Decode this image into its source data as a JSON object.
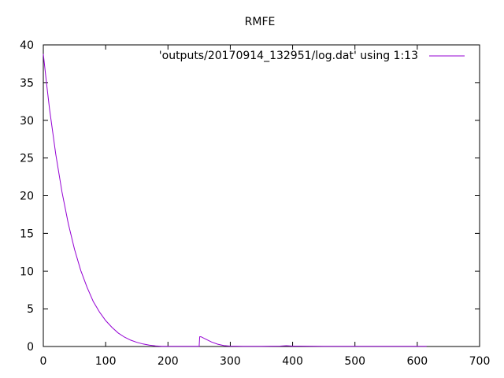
{
  "chart_data": {
    "type": "line",
    "title": "RMFE",
    "xlabel": "",
    "ylabel": "",
    "xlim": [
      0,
      700
    ],
    "ylim": [
      0,
      40
    ],
    "xticks": [
      0,
      100,
      200,
      300,
      400,
      500,
      600,
      700
    ],
    "yticks": [
      0,
      5,
      10,
      15,
      20,
      25,
      30,
      35,
      40
    ],
    "grid": false,
    "legend_position": "top-right",
    "series": [
      {
        "name": "'outputs/20170914_132951/log.dat' using 1:13",
        "color": "#9400d3",
        "x": [
          0,
          5,
          10,
          20,
          30,
          40,
          50,
          60,
          70,
          80,
          90,
          100,
          110,
          120,
          130,
          140,
          150,
          160,
          170,
          180,
          190,
          200,
          210,
          220,
          230,
          240,
          250,
          251,
          253,
          260,
          270,
          280,
          290,
          300,
          320,
          350,
          380,
          390,
          400,
          450,
          500,
          550,
          600,
          615
        ],
        "y": [
          38.8,
          35.0,
          31.5,
          25.5,
          20.5,
          16.3,
          12.9,
          10.1,
          7.9,
          6.0,
          4.6,
          3.45,
          2.55,
          1.8,
          1.25,
          0.85,
          0.55,
          0.33,
          0.18,
          0.08,
          0.03,
          0.02,
          0.02,
          0.02,
          0.02,
          0.02,
          0.02,
          1.3,
          1.3,
          1.0,
          0.6,
          0.3,
          0.12,
          0.05,
          0.03,
          0.03,
          0.05,
          0.1,
          0.05,
          0.03,
          0.03,
          0.03,
          0.03,
          0.03
        ]
      }
    ]
  }
}
